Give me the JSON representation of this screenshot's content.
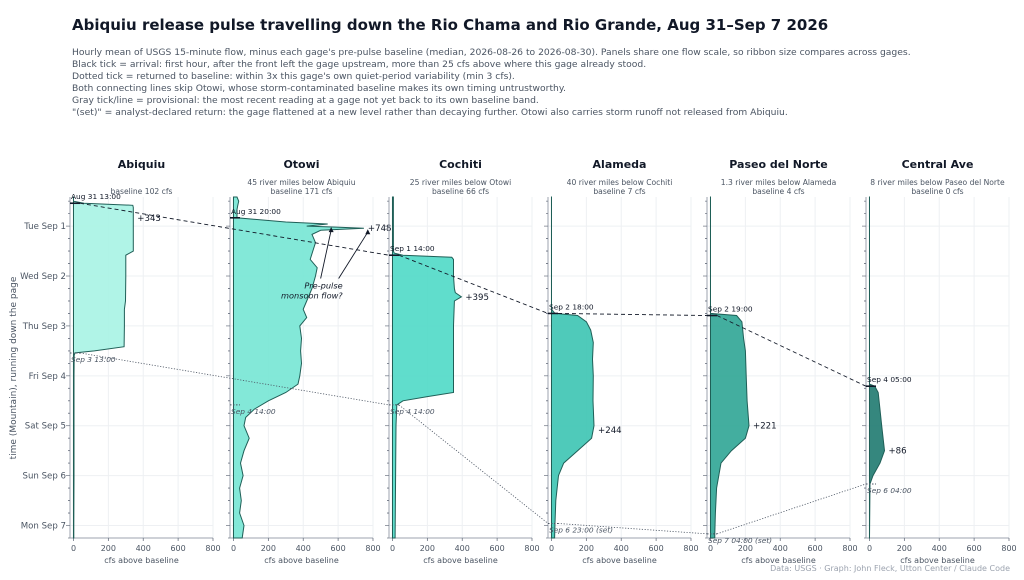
{
  "title": "Abiquiu release pulse travelling down the Rio Chama and Rio Grande, Aug 31–Sep 7 2026",
  "notes": [
    "Hourly mean of USGS 15-minute flow, minus each gage's pre-pulse baseline (median, 2026-08-26 to 2026-08-30). Panels share one flow scale, so ribbon size compares across gages.",
    "Black tick = arrival: first hour, after the front left the gage upstream, more than 25 cfs above where this gage already stood.",
    "Dotted tick = returned to baseline: within 3x this gage's own quiet-period variability (min 3 cfs).",
    "Both connecting lines skip Otowi, whose storm-contaminated baseline makes its own timing untrustworthy.",
    "Gray tick/line = provisional: the most recent reading at a gage not yet back to its own baseline band.",
    "\"(set)\" = analyst-declared return: the gage flattened at a new level rather than decaying further. Otowi also carries storm runoff not released from Abiquiu."
  ],
  "credit": "Data: USGS  ·  Graph: John Fleck, Utton Center / Claude Code",
  "chart_data": {
    "type": "area",
    "ylabel": "time (Mountain), running down the page",
    "xlabel": "cfs above baseline",
    "xlim": [
      -20,
      800
    ],
    "xticks": [
      0,
      200,
      400,
      600,
      800
    ],
    "ylim": [
      "2026-08-31 10:00",
      "2026-09-07 06:00"
    ],
    "yticks": [
      {
        "t": "2026-09-01 00:00",
        "label": "Tue Sep 1"
      },
      {
        "t": "2026-09-02 00:00",
        "label": "Wed Sep 2"
      },
      {
        "t": "2026-09-03 00:00",
        "label": "Thu Sep 3"
      },
      {
        "t": "2026-09-04 00:00",
        "label": "Fri Sep 4"
      },
      {
        "t": "2026-09-05 00:00",
        "label": "Sat Sep 5"
      },
      {
        "t": "2026-09-06 00:00",
        "label": "Sun Sep 6"
      },
      {
        "t": "2026-09-07 00:00",
        "label": "Mon Sep 7"
      }
    ],
    "grid": true,
    "panels": [
      {
        "name": "Abiquiu",
        "subtitle": "",
        "baseline": "baseline 102 cfs",
        "color": "#a7f3e4",
        "arrival": {
          "t": "2026-08-31 13:00",
          "label": "Aug 31 13:00"
        },
        "return": {
          "t": "2026-09-03 13:00",
          "label": "Sep 3 13:00"
        },
        "peak": {
          "t": "2026-08-31 20:00",
          "value": 343,
          "label": "+343"
        },
        "points": [
          [
            "2026-08-31 10:00",
            0
          ],
          [
            "2026-08-31 12:00",
            0
          ],
          [
            "2026-08-31 13:00",
            60
          ],
          [
            "2026-08-31 14:00",
            340
          ],
          [
            "2026-08-31 15:00",
            343
          ],
          [
            "2026-09-01 00:00",
            343
          ],
          [
            "2026-09-01 12:00",
            343
          ],
          [
            "2026-09-01 14:00",
            300
          ],
          [
            "2026-09-02 00:00",
            300
          ],
          [
            "2026-09-02 12:00",
            298
          ],
          [
            "2026-09-02 16:00",
            292
          ],
          [
            "2026-09-03 00:00",
            292
          ],
          [
            "2026-09-03 10:00",
            290
          ],
          [
            "2026-09-03 12:00",
            120
          ],
          [
            "2026-09-03 13:00",
            10
          ],
          [
            "2026-09-03 14:00",
            4
          ],
          [
            "2026-09-04 00:00",
            3
          ],
          [
            "2026-09-05 00:00",
            3
          ],
          [
            "2026-09-06 00:00",
            3
          ],
          [
            "2026-09-07 00:00",
            2
          ],
          [
            "2026-09-07 06:00",
            2
          ]
        ]
      },
      {
        "name": "Otowi",
        "subtitle": "45 river miles below Abiquiu",
        "baseline": "baseline 171 cfs",
        "color": "#76e6d4",
        "arrival": {
          "t": "2026-08-31 20:00",
          "label": "Aug 31 20:00"
        },
        "return": {
          "t": "2026-09-04 14:00",
          "label": "Sep 4 14:00"
        },
        "peak": {
          "t": "2026-09-01 01:00",
          "value": 748,
          "label": "+748"
        },
        "annotation": {
          "line1": "Pre-pulse",
          "line2": "monsoon flow?",
          "t": "2026-09-02 06:00",
          "x": 580
        },
        "points": [
          [
            "2026-08-31 10:00",
            20
          ],
          [
            "2026-08-31 12:00",
            30
          ],
          [
            "2026-08-31 14:00",
            25
          ],
          [
            "2026-08-31 16:00",
            20
          ],
          [
            "2026-08-31 20:00",
            20
          ],
          [
            "2026-08-31 22:00",
            300
          ],
          [
            "2026-08-31 23:00",
            540
          ],
          [
            "2026-09-01 00:00",
            420
          ],
          [
            "2026-09-01 00:30",
            590
          ],
          [
            "2026-09-01 01:00",
            748
          ],
          [
            "2026-09-01 02:00",
            500
          ],
          [
            "2026-09-01 04:00",
            450
          ],
          [
            "2026-09-01 08:00",
            470
          ],
          [
            "2026-09-01 12:00",
            455
          ],
          [
            "2026-09-01 16:00",
            440
          ],
          [
            "2026-09-01 20:00",
            480
          ],
          [
            "2026-09-02 00:00",
            470
          ],
          [
            "2026-09-02 06:00",
            450
          ],
          [
            "2026-09-02 12:00",
            420
          ],
          [
            "2026-09-02 16:00",
            400
          ],
          [
            "2026-09-02 20:00",
            420
          ],
          [
            "2026-09-03 00:00",
            380
          ],
          [
            "2026-09-03 06:00",
            390
          ],
          [
            "2026-09-03 12:00",
            385
          ],
          [
            "2026-09-03 18:00",
            390
          ],
          [
            "2026-09-04 00:00",
            380
          ],
          [
            "2026-09-04 04:00",
            370
          ],
          [
            "2026-09-04 08:00",
            300
          ],
          [
            "2026-09-04 12:00",
            200
          ],
          [
            "2026-09-04 16:00",
            120
          ],
          [
            "2026-09-04 20:00",
            70
          ],
          [
            "2026-09-05 00:00",
            60
          ],
          [
            "2026-09-05 06:00",
            90
          ],
          [
            "2026-09-05 12:00",
            60
          ],
          [
            "2026-09-05 18:00",
            40
          ],
          [
            "2026-09-06 00:00",
            55
          ],
          [
            "2026-09-06 06:00",
            35
          ],
          [
            "2026-09-06 12:00",
            45
          ],
          [
            "2026-09-06 18:00",
            35
          ],
          [
            "2026-09-07 00:00",
            60
          ],
          [
            "2026-09-07 06:00",
            50
          ]
        ]
      },
      {
        "name": "Cochiti",
        "subtitle": "25 river miles below Otowi",
        "baseline": "baseline 66 cfs",
        "color": "#4fd9c6",
        "arrival": {
          "t": "2026-09-01 14:00",
          "label": "Sep 1 14:00"
        },
        "return": {
          "t": "2026-09-04 14:00",
          "label": "Sep 4 14:00"
        },
        "peak": {
          "t": "2026-09-02 10:00",
          "value": 395,
          "label": "+395"
        },
        "points": [
          [
            "2026-08-31 10:00",
            5
          ],
          [
            "2026-09-01 12:00",
            5
          ],
          [
            "2026-09-01 13:00",
            10
          ],
          [
            "2026-09-01 14:00",
            60
          ],
          [
            "2026-09-01 15:00",
            340
          ],
          [
            "2026-09-01 16:00",
            350
          ],
          [
            "2026-09-02 00:00",
            350
          ],
          [
            "2026-09-02 06:00",
            355
          ],
          [
            "2026-09-02 08:00",
            360
          ],
          [
            "2026-09-02 10:00",
            395
          ],
          [
            "2026-09-02 12:00",
            355
          ],
          [
            "2026-09-03 00:00",
            350
          ],
          [
            "2026-09-04 00:00",
            350
          ],
          [
            "2026-09-04 08:00",
            350
          ],
          [
            "2026-09-04 10:00",
            200
          ],
          [
            "2026-09-04 12:00",
            60
          ],
          [
            "2026-09-04 14:00",
            25
          ],
          [
            "2026-09-05 00:00",
            20
          ],
          [
            "2026-09-06 00:00",
            18
          ],
          [
            "2026-09-07 06:00",
            15
          ]
        ]
      },
      {
        "name": "Alameda",
        "subtitle": "40 river miles below Cochiti",
        "baseline": "baseline 7 cfs",
        "color": "#3cc4b2",
        "arrival": {
          "t": "2026-09-02 18:00",
          "label": "Sep 2 18:00"
        },
        "return": {
          "t": "2026-09-06 23:00",
          "label": "Sep 6 23:00 (set)"
        },
        "peak": {
          "t": "2026-09-05 02:00",
          "value": 244,
          "label": "+244"
        },
        "points": [
          [
            "2026-08-31 10:00",
            0
          ],
          [
            "2026-09-02 16:00",
            0
          ],
          [
            "2026-09-02 18:00",
            20
          ],
          [
            "2026-09-02 19:00",
            150
          ],
          [
            "2026-09-02 22:00",
            200
          ],
          [
            "2026-09-03 02:00",
            225
          ],
          [
            "2026-09-03 08:00",
            240
          ],
          [
            "2026-09-03 16:00",
            235
          ],
          [
            "2026-09-04 00:00",
            240
          ],
          [
            "2026-09-04 12:00",
            238
          ],
          [
            "2026-09-05 00:00",
            244
          ],
          [
            "2026-09-05 06:00",
            230
          ],
          [
            "2026-09-05 12:00",
            150
          ],
          [
            "2026-09-05 18:00",
            70
          ],
          [
            "2026-09-06 00:00",
            40
          ],
          [
            "2026-09-06 12:00",
            25
          ],
          [
            "2026-09-06 23:00",
            20
          ],
          [
            "2026-09-07 06:00",
            18
          ]
        ]
      },
      {
        "name": "Paseo del Norte",
        "subtitle": "1.3 river miles below Alameda",
        "baseline": "baseline 4 cfs",
        "color": "#2fa595",
        "arrival": {
          "t": "2026-09-02 19:00",
          "label": "Sep 2 19:00"
        },
        "return": {
          "t": "2026-09-07 04:00",
          "label": "Sep 7 04:00 (set)"
        },
        "peak": {
          "t": "2026-09-05 00:00",
          "value": 221,
          "label": "+221"
        },
        "points": [
          [
            "2026-08-31 10:00",
            0
          ],
          [
            "2026-09-02 18:00",
            0
          ],
          [
            "2026-09-02 19:00",
            150
          ],
          [
            "2026-09-02 22:00",
            180
          ],
          [
            "2026-09-03 06:00",
            190
          ],
          [
            "2026-09-03 12:00",
            200
          ],
          [
            "2026-09-04 00:00",
            205
          ],
          [
            "2026-09-04 12:00",
            210
          ],
          [
            "2026-09-05 00:00",
            221
          ],
          [
            "2026-09-05 06:00",
            200
          ],
          [
            "2026-09-05 12:00",
            120
          ],
          [
            "2026-09-05 18:00",
            60
          ],
          [
            "2026-09-06 06:00",
            35
          ],
          [
            "2026-09-06 18:00",
            28
          ],
          [
            "2026-09-07 04:00",
            25
          ],
          [
            "2026-09-07 06:00",
            25
          ]
        ]
      },
      {
        "name": "Central Ave",
        "subtitle": "8 river miles below Paseo del Norte",
        "baseline": "baseline 0 cfs",
        "color": "#1f7a70",
        "arrival": {
          "t": "2026-09-04 05:00",
          "label": "Sep 4 05:00"
        },
        "return": {
          "t": "2026-09-06 04:00",
          "label": "Sep 6 04:00"
        },
        "peak": {
          "t": "2026-09-05 12:00",
          "value": 86,
          "label": "+86"
        },
        "points": [
          [
            "2026-08-31 10:00",
            0
          ],
          [
            "2026-09-04 04:00",
            0
          ],
          [
            "2026-09-04 05:00",
            30
          ],
          [
            "2026-09-04 08:00",
            50
          ],
          [
            "2026-09-05 00:00",
            70
          ],
          [
            "2026-09-05 12:00",
            86
          ],
          [
            "2026-09-05 18:00",
            60
          ],
          [
            "2026-09-06 00:00",
            20
          ],
          [
            "2026-09-06 04:00",
            3
          ],
          [
            "2026-09-07 06:00",
            0
          ]
        ]
      }
    ]
  }
}
